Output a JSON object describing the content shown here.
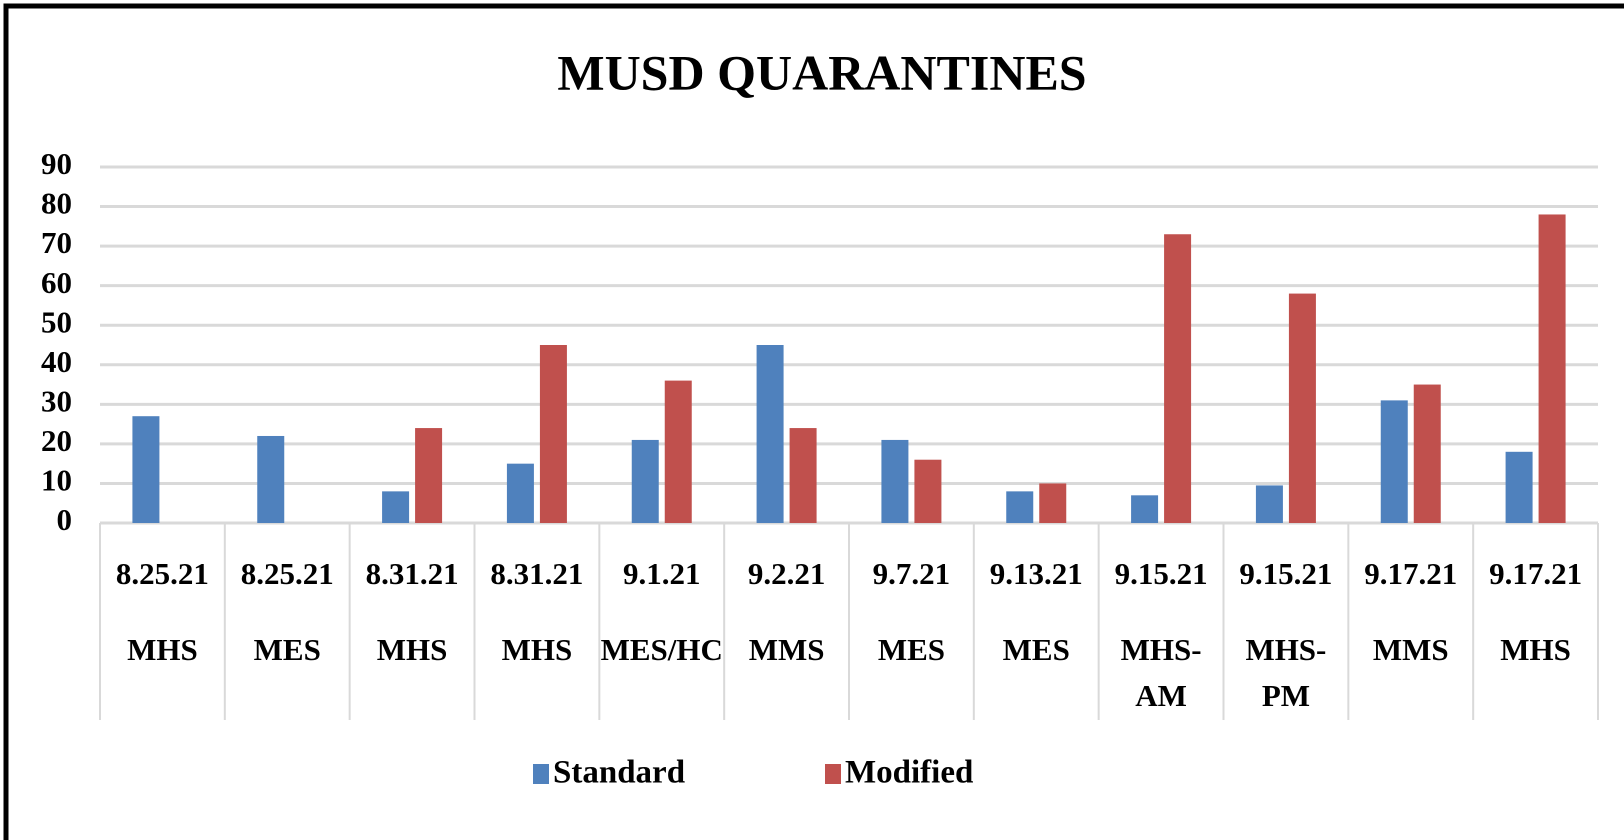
{
  "chart_data": {
    "type": "bar",
    "title": "MUSD QUARANTINES",
    "categories": [
      [
        "8.25.21",
        "MHS"
      ],
      [
        "8.25.21",
        "MES"
      ],
      [
        "8.31.21",
        "MHS"
      ],
      [
        "8.31.21",
        "MHS"
      ],
      [
        "9.1.21",
        "MES/HC"
      ],
      [
        "9.2.21",
        "MMS"
      ],
      [
        "9.7.21",
        "MES"
      ],
      [
        "9.13.21",
        "MES"
      ],
      [
        "9.15.21",
        "MHS-",
        "AM"
      ],
      [
        "9.15.21",
        "MHS-",
        "PM"
      ],
      [
        "9.17.21",
        "MMS"
      ],
      [
        "9.17.21",
        "MHS"
      ]
    ],
    "series": [
      {
        "name": "Standard",
        "color": "#4f81bd",
        "values": [
          27,
          22,
          8,
          15,
          21,
          45,
          21,
          8,
          7,
          9.5,
          31,
          18
        ]
      },
      {
        "name": "Modified",
        "color": "#c0504d",
        "values": [
          null,
          null,
          24,
          45,
          36,
          24,
          16,
          10,
          73,
          58,
          35,
          78
        ]
      }
    ],
    "ylim": [
      0,
      90
    ],
    "yticks": [
      0,
      10,
      20,
      30,
      40,
      50,
      60,
      70,
      80,
      90
    ],
    "grid": true,
    "legend": "bottom"
  }
}
